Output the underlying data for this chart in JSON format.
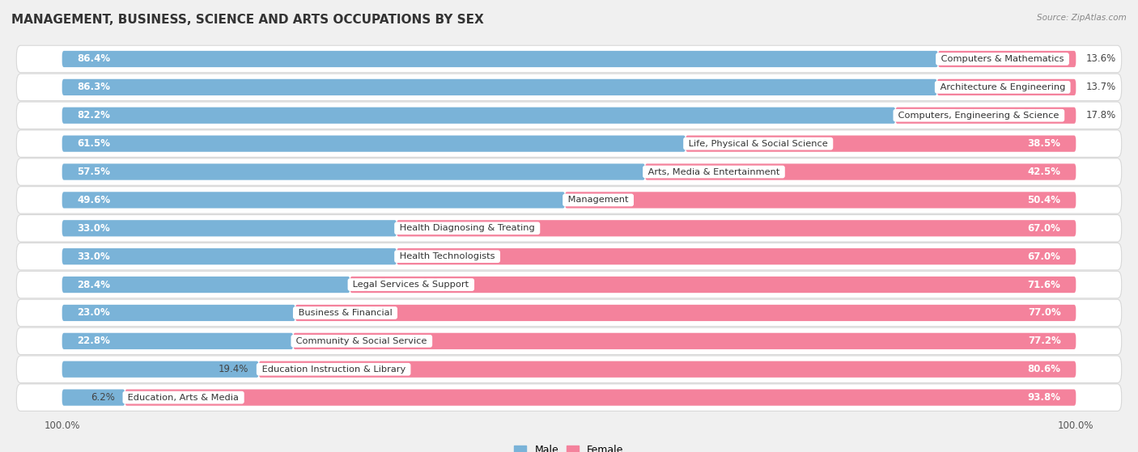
{
  "title": "MANAGEMENT, BUSINESS, SCIENCE AND ARTS OCCUPATIONS BY SEX",
  "source": "Source: ZipAtlas.com",
  "categories": [
    "Computers & Mathematics",
    "Architecture & Engineering",
    "Computers, Engineering & Science",
    "Life, Physical & Social Science",
    "Arts, Media & Entertainment",
    "Management",
    "Health Diagnosing & Treating",
    "Health Technologists",
    "Legal Services & Support",
    "Business & Financial",
    "Community & Social Service",
    "Education Instruction & Library",
    "Education, Arts & Media"
  ],
  "male_pct": [
    86.4,
    86.3,
    82.2,
    61.5,
    57.5,
    49.6,
    33.0,
    33.0,
    28.4,
    23.0,
    22.8,
    19.4,
    6.2
  ],
  "female_pct": [
    13.6,
    13.7,
    17.8,
    38.5,
    42.5,
    50.4,
    67.0,
    67.0,
    71.6,
    77.0,
    77.2,
    80.6,
    93.8
  ],
  "male_color": "#7ab3d8",
  "female_color": "#f4829c",
  "bg_color": "#f0f0f0",
  "row_bg_light": "#fafafa",
  "row_bg_dark": "#ececec",
  "title_fontsize": 11,
  "label_fontsize": 8.5,
  "bar_height": 0.58,
  "figsize": [
    14.06,
    5.59
  ],
  "xlim_left": -5,
  "xlim_right": 105
}
